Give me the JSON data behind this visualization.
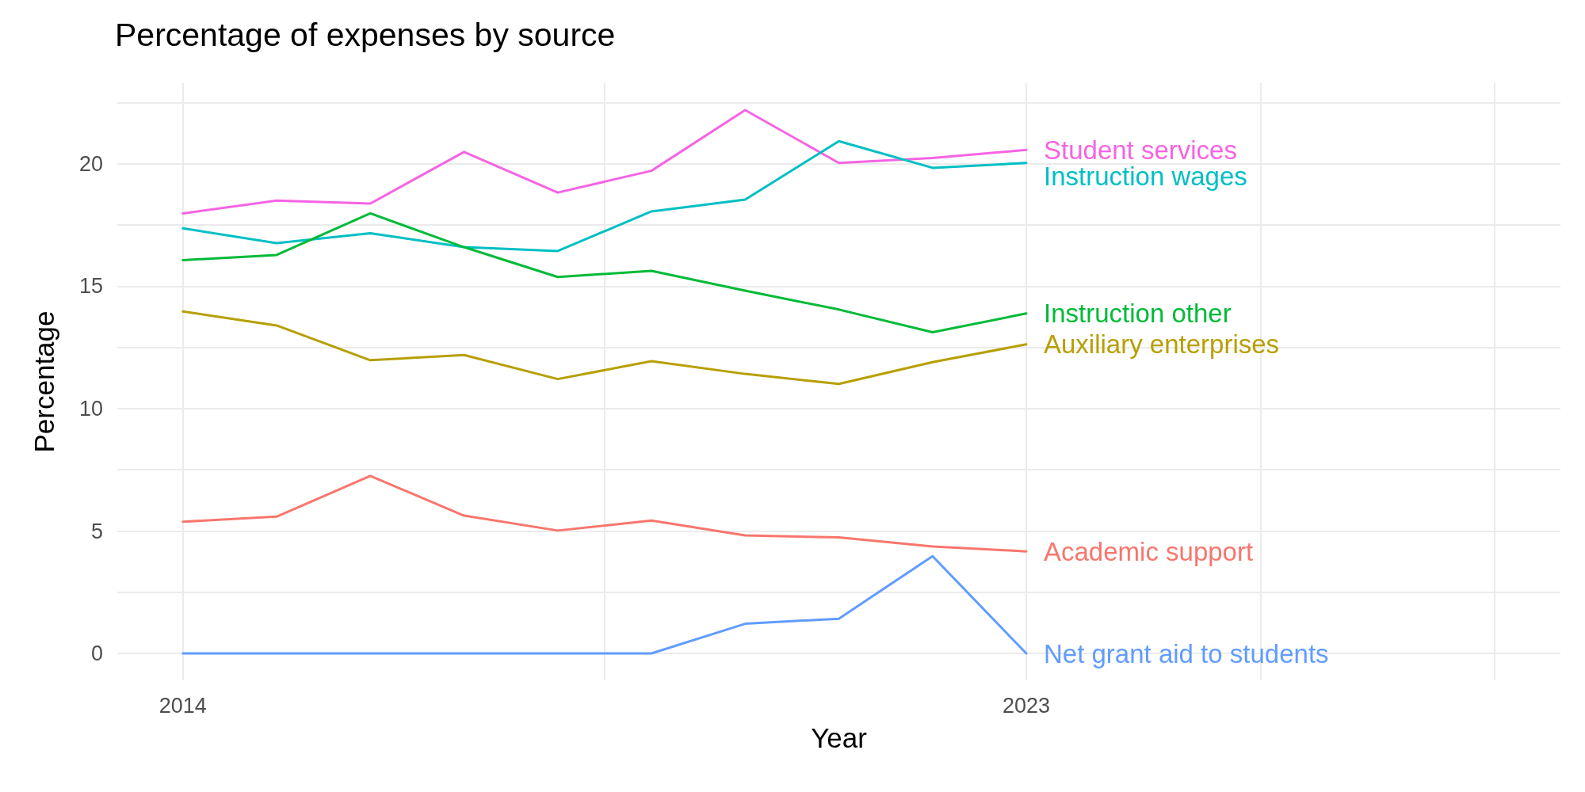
{
  "chart_data": {
    "type": "line",
    "title": "Percentage of expenses by source",
    "xlabel": "Year",
    "ylabel": "Percentage",
    "x": [
      2014,
      2015,
      2016,
      2017,
      2018,
      2019,
      2020,
      2021,
      2022,
      2023
    ],
    "series": [
      {
        "name": "Student services",
        "color": "#f564e3",
        "values": [
          17.98,
          18.5,
          18.38,
          20.49,
          18.83,
          19.72,
          22.2,
          20.04,
          20.24,
          20.57
        ]
      },
      {
        "name": "Instruction wages",
        "color": "#00bfc4",
        "values": [
          17.37,
          16.76,
          17.17,
          16.6,
          16.44,
          18.06,
          18.54,
          20.93,
          19.84,
          20.04
        ]
      },
      {
        "name": "Instruction other",
        "color": "#00ba38",
        "values": [
          16.07,
          16.28,
          17.98,
          16.6,
          15.38,
          15.63,
          14.82,
          14.05,
          13.12,
          13.89
        ]
      },
      {
        "name": "Auxiliary enterprises",
        "color": "#b79f00",
        "values": [
          13.97,
          13.4,
          11.98,
          12.19,
          11.21,
          11.94,
          11.42,
          11.01,
          11.9,
          12.63
        ]
      },
      {
        "name": "Academic support",
        "color": "#f8766d",
        "values": [
          5.38,
          5.59,
          7.25,
          5.63,
          5.02,
          5.43,
          4.82,
          4.74,
          4.37,
          4.17
        ]
      },
      {
        "name": "Net grant aid to students",
        "color": "#619cff",
        "values": [
          0,
          0,
          0,
          0,
          0,
          0,
          1.21,
          1.42,
          3.97,
          0
        ]
      }
    ],
    "xlim": [
      2013.3,
      2028.7
    ],
    "xticks": [
      2014,
      {
        "value": 2018.5,
        "label": null
      },
      2023,
      {
        "value": 2025.5,
        "label": null
      },
      {
        "value": 2028,
        "label": null
      }
    ],
    "ylim": [
      -1.1,
      23.3
    ],
    "yticks": [
      0,
      {
        "value": 2.5,
        "label": null
      },
      5,
      {
        "value": 7.5,
        "label": null
      },
      10,
      {
        "value": 12.5,
        "label": null
      },
      15,
      {
        "value": 17.5,
        "label": null
      },
      20,
      {
        "value": 22.5,
        "label": null
      }
    ],
    "grid": true,
    "legend": false,
    "marker": "none",
    "line_style": "solid"
  }
}
